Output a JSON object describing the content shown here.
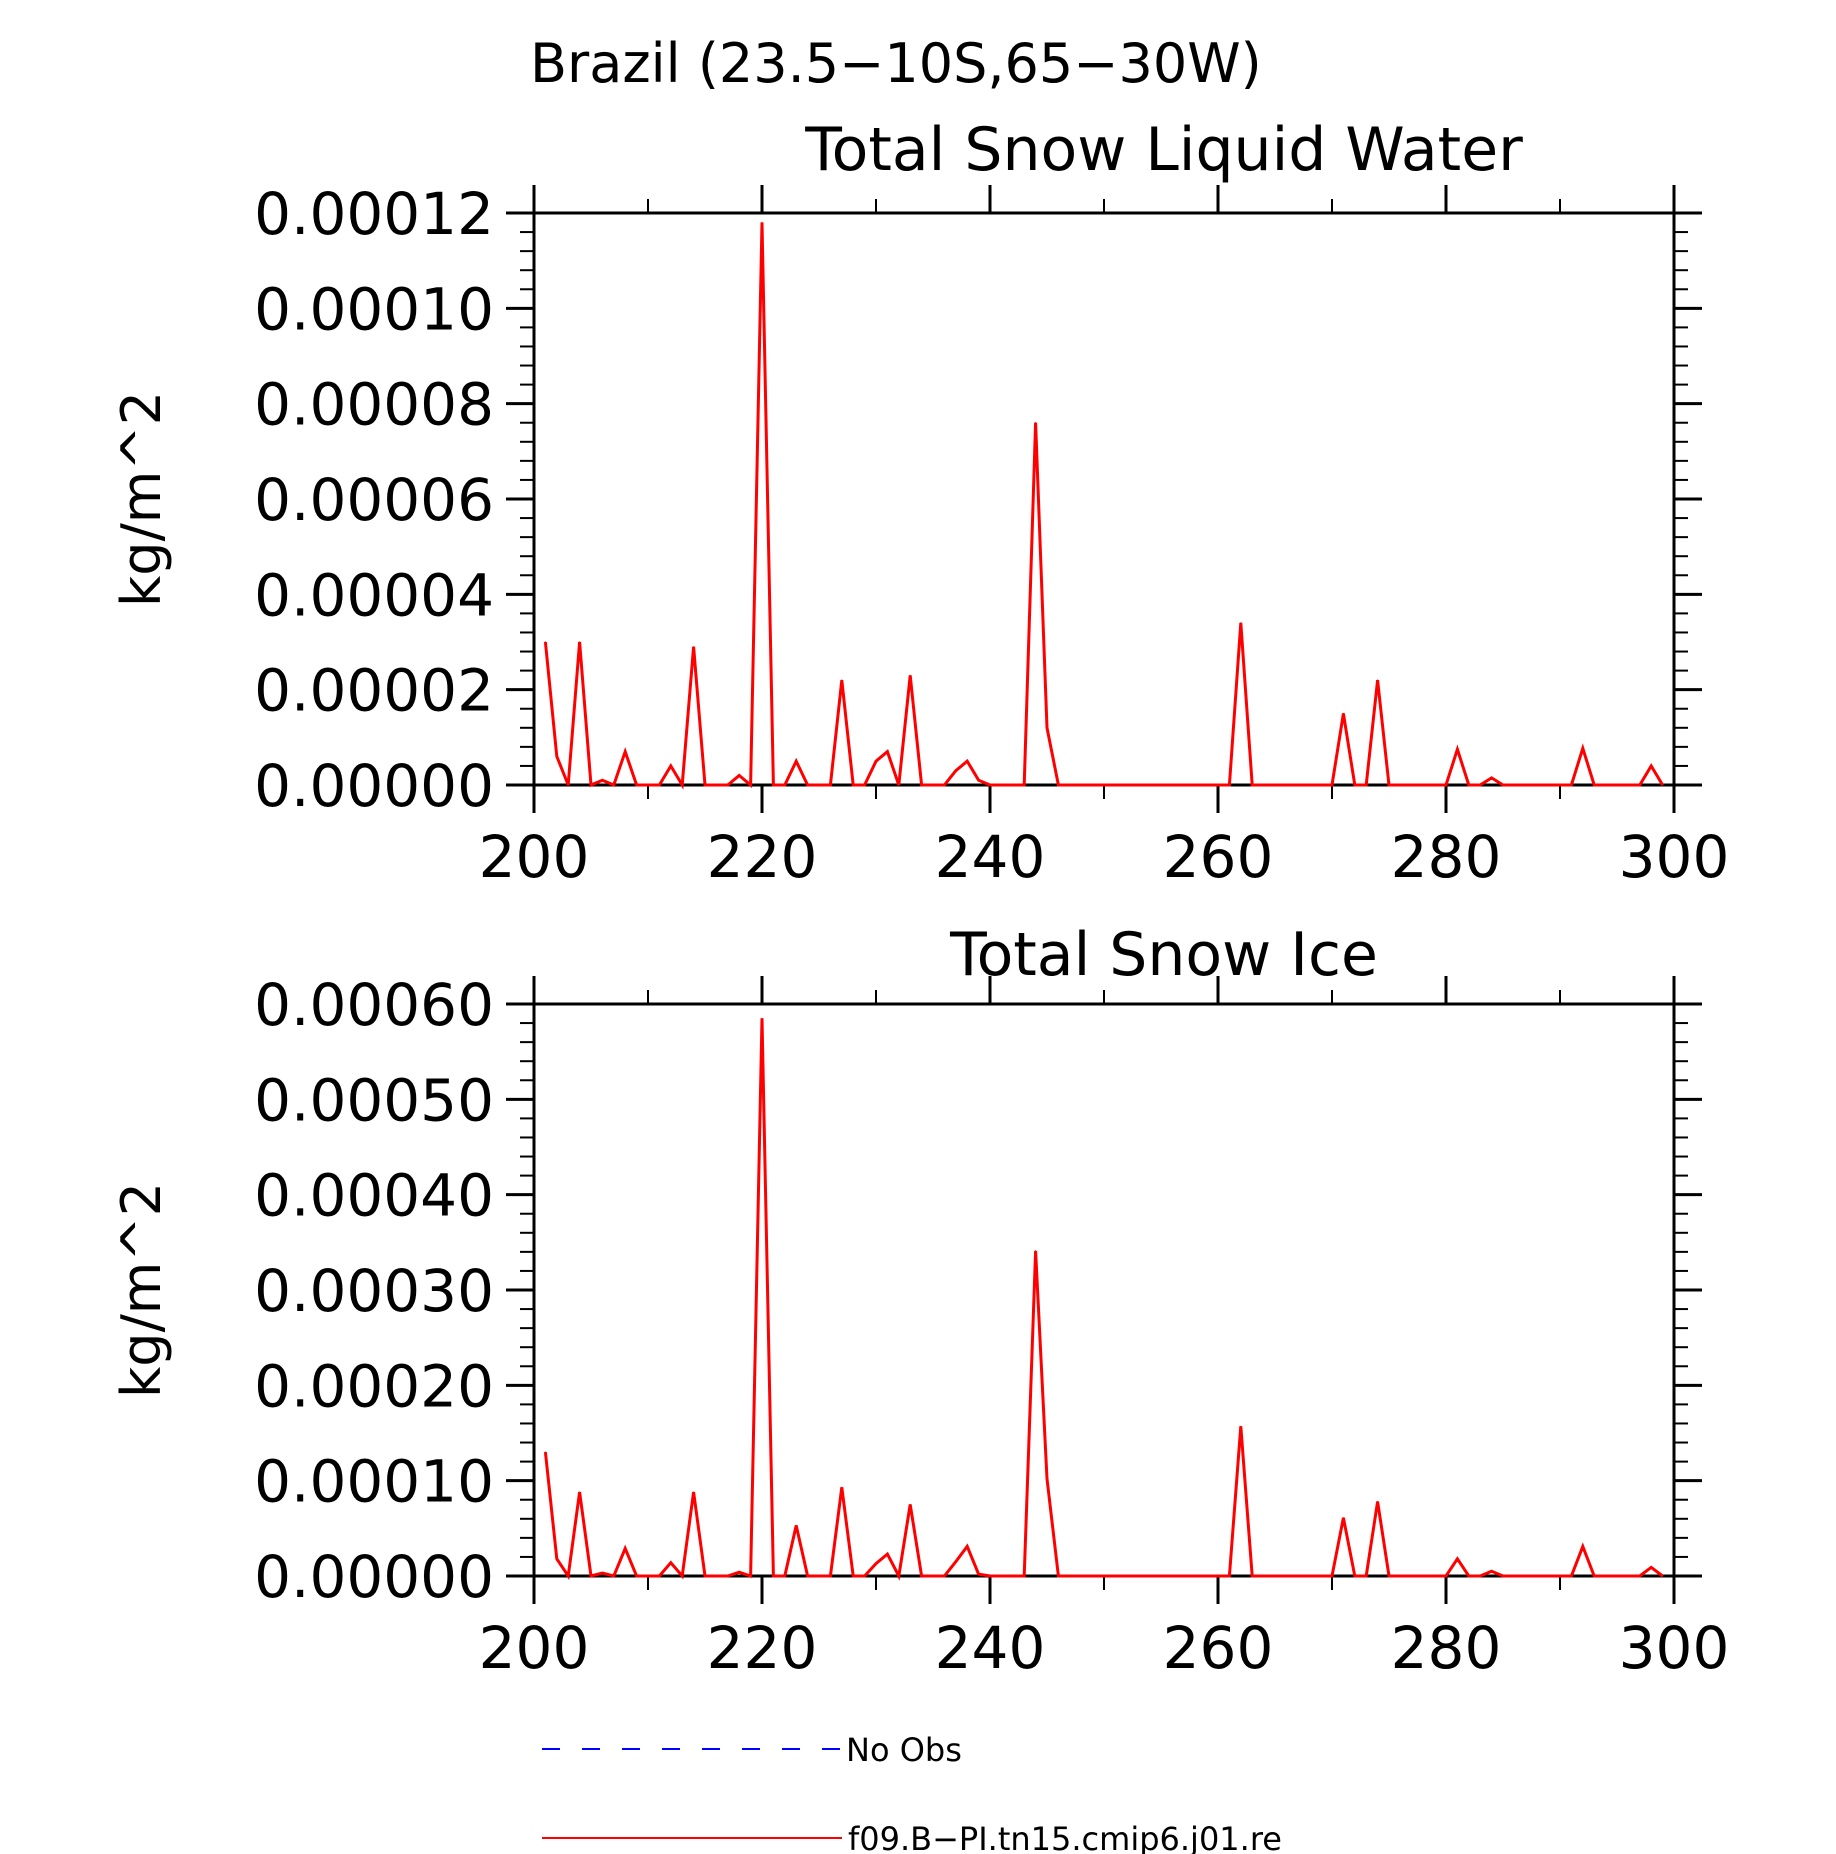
{
  "figure": {
    "title": "Brazil (23.5−10S,65−30W)",
    "line_color": "#ff0000",
    "obs_color": "#0000ff"
  },
  "chart_data": [
    {
      "type": "line",
      "title": "Total Snow Liquid Water",
      "xlabel": "",
      "ylabel": "kg/m^2",
      "xlim": [
        200,
        300
      ],
      "ylim": [
        0,
        0.00012
      ],
      "xticks": [
        "200",
        "220",
        "240",
        "260",
        "280",
        "300"
      ],
      "yticks": [
        "0.00000",
        "0.00002",
        "0.00004",
        "0.00006",
        "0.00008",
        "0.00010",
        "0.00012"
      ],
      "grid": false,
      "series": [
        {
          "name": "f09.B−PI.tn15.cmip6.j01.re",
          "x": [
            201,
            202,
            203,
            204,
            205,
            206,
            207,
            208,
            209,
            210,
            211,
            212,
            213,
            214,
            215,
            216,
            217,
            218,
            219,
            220,
            221,
            222,
            223,
            224,
            225,
            226,
            227,
            228,
            229,
            230,
            231,
            232,
            233,
            234,
            235,
            236,
            237,
            238,
            239,
            240,
            241,
            242,
            243,
            244,
            245,
            246,
            247,
            248,
            249,
            250,
            251,
            252,
            253,
            254,
            255,
            256,
            257,
            258,
            259,
            260,
            261,
            262,
            263,
            264,
            265,
            266,
            267,
            268,
            269,
            270,
            271,
            272,
            273,
            274,
            275,
            276,
            277,
            278,
            279,
            280,
            281,
            282,
            283,
            284,
            285,
            286,
            287,
            288,
            289,
            290,
            291,
            292,
            293,
            294,
            295,
            296,
            297,
            298,
            299
          ],
          "y": [
            3e-05,
            6e-06,
            0,
            3e-05,
            0,
            1e-06,
            0,
            7e-06,
            0,
            0,
            0,
            4e-06,
            0,
            2.9e-05,
            0,
            0,
            0,
            2e-06,
            0,
            0.000118,
            0,
            0,
            5e-06,
            0,
            0,
            0,
            2.2e-05,
            0,
            0,
            5e-06,
            7e-06,
            0,
            2.3e-05,
            0,
            0,
            0,
            3e-06,
            5e-06,
            1e-06,
            0,
            0,
            0,
            0,
            7.6e-05,
            1.2e-05,
            0,
            0,
            0,
            0,
            0,
            0,
            0,
            0,
            0,
            0,
            0,
            0,
            0,
            0,
            0,
            0,
            3.4e-05,
            0,
            0,
            0,
            0,
            0,
            0,
            0,
            0,
            1.5e-05,
            0,
            0,
            2.2e-05,
            0,
            0,
            0,
            0,
            0,
            0,
            7.5e-06,
            0,
            0,
            1.5e-06,
            0,
            0,
            0,
            0,
            0,
            0,
            0,
            7.7e-06,
            0,
            0,
            0,
            0,
            0,
            4e-06,
            0
          ]
        }
      ]
    },
    {
      "type": "line",
      "title": "Total Snow Ice",
      "xlabel": "",
      "ylabel": "kg/m^2",
      "xlim": [
        200,
        300
      ],
      "ylim": [
        0,
        0.0006
      ],
      "xticks": [
        "200",
        "220",
        "240",
        "260",
        "280",
        "300"
      ],
      "yticks": [
        "0.00000",
        "0.00010",
        "0.00020",
        "0.00030",
        "0.00040",
        "0.00050",
        "0.00060"
      ],
      "grid": false,
      "series": [
        {
          "name": "f09.B−PI.tn15.cmip6.j01.re",
          "x": [
            201,
            202,
            203,
            204,
            205,
            206,
            207,
            208,
            209,
            210,
            211,
            212,
            213,
            214,
            215,
            216,
            217,
            218,
            219,
            220,
            221,
            222,
            223,
            224,
            225,
            226,
            227,
            228,
            229,
            230,
            231,
            232,
            233,
            234,
            235,
            236,
            237,
            238,
            239,
            240,
            241,
            242,
            243,
            244,
            245,
            246,
            247,
            248,
            249,
            250,
            251,
            252,
            253,
            254,
            255,
            256,
            257,
            258,
            259,
            260,
            261,
            262,
            263,
            264,
            265,
            266,
            267,
            268,
            269,
            270,
            271,
            272,
            273,
            274,
            275,
            276,
            277,
            278,
            279,
            280,
            281,
            282,
            283,
            284,
            285,
            286,
            287,
            288,
            289,
            290,
            291,
            292,
            293,
            294,
            295,
            296,
            297,
            298,
            299
          ],
          "y": [
            0.00013,
            1.8e-05,
            0,
            8.8e-05,
            0,
            3e-06,
            0,
            2.9e-05,
            0,
            0,
            0,
            1.4e-05,
            0,
            8.8e-05,
            0,
            0,
            0,
            4e-06,
            0,
            0.000585,
            0,
            0,
            5.3e-05,
            0,
            0,
            0,
            9.3e-05,
            0,
            0,
            1.3e-05,
            2.3e-05,
            0,
            7.5e-05,
            0,
            0,
            0,
            1.5e-05,
            3.1e-05,
            2e-06,
            0,
            0,
            0,
            0,
            0.000341,
            0.000102,
            0,
            0,
            0,
            0,
            0,
            0,
            0,
            0,
            0,
            0,
            0,
            0,
            0,
            0,
            0,
            0,
            0.000157,
            0,
            0,
            0,
            0,
            0,
            0,
            0,
            0,
            6.1e-05,
            0,
            0,
            7.8e-05,
            0,
            0,
            0,
            0,
            0,
            0,
            1.8e-05,
            0,
            0,
            5e-06,
            0,
            0,
            0,
            0,
            0,
            0,
            0,
            3.1e-05,
            0,
            0,
            0,
            0,
            0,
            9e-06,
            0
          ]
        }
      ]
    }
  ],
  "legend": {
    "entries": [
      {
        "label": "No Obs",
        "style": "dashed",
        "color": "#0000ff"
      },
      {
        "label": "f09.B−PI.tn15.cmip6.j01.re",
        "style": "solid",
        "color": "#ff0000"
      }
    ]
  }
}
